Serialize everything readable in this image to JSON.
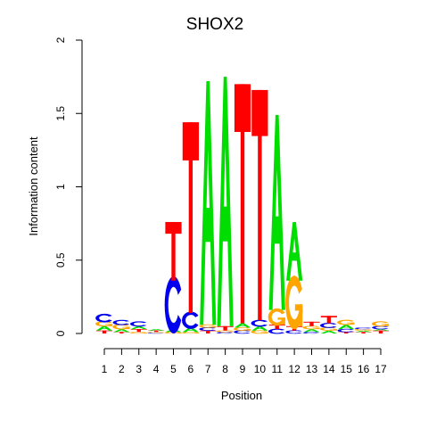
{
  "chart_data": {
    "type": "sequence-logo",
    "title": "SHOX2",
    "xlabel": "Position",
    "ylabel": "Information content",
    "ylim": [
      0,
      2
    ],
    "y_ticks": [
      "0",
      "0.5",
      "1",
      "1.5",
      "2"
    ],
    "positions": [
      "1",
      "2",
      "3",
      "4",
      "5",
      "6",
      "7",
      "8",
      "9",
      "10",
      "11",
      "12",
      "13",
      "14",
      "15",
      "16",
      "17"
    ],
    "colors": {
      "A": "#00dd00",
      "C": "#0000ee",
      "G": "#ffa500",
      "T": "#ff0000"
    },
    "columns": [
      [
        [
          "T",
          0.02
        ],
        [
          "A",
          0.03
        ],
        [
          "G",
          0.03
        ],
        [
          "C",
          0.05
        ]
      ],
      [
        [
          "T",
          0.01
        ],
        [
          "A",
          0.02
        ],
        [
          "G",
          0.03
        ],
        [
          "C",
          0.03
        ]
      ],
      [
        [
          "G",
          0.01
        ],
        [
          "T",
          0.02
        ],
        [
          "A",
          0.02
        ],
        [
          "C",
          0.03
        ]
      ],
      [
        [
          "C",
          0.005
        ],
        [
          "G",
          0.005
        ],
        [
          "T",
          0.01
        ],
        [
          "A",
          0.01
        ]
      ],
      [
        [
          "G",
          0.01
        ],
        [
          "A",
          0.02
        ],
        [
          "C",
          0.33
        ],
        [
          "T",
          0.4
        ]
      ],
      [
        [
          "G",
          0.01
        ],
        [
          "A",
          0.03
        ],
        [
          "C",
          0.1
        ],
        [
          "T",
          1.3
        ]
      ],
      [
        [
          "T",
          0.02
        ],
        [
          "C",
          0.02
        ],
        [
          "G",
          0.02
        ],
        [
          "A",
          1.66
        ]
      ],
      [
        [
          "C",
          0.01
        ],
        [
          "G",
          0.01
        ],
        [
          "T",
          0.03
        ],
        [
          "A",
          1.7
        ]
      ],
      [
        [
          "C",
          0.02
        ],
        [
          "G",
          0.02
        ],
        [
          "A",
          0.03
        ],
        [
          "T",
          1.63
        ]
      ],
      [
        [
          "G",
          0.02
        ],
        [
          "A",
          0.03
        ],
        [
          "C",
          0.04
        ],
        [
          "T",
          1.57
        ]
      ],
      [
        [
          "C",
          0.03
        ],
        [
          "T",
          0.03
        ],
        [
          "G",
          0.1
        ],
        [
          "A",
          1.33
        ]
      ],
      [
        [
          "C",
          0.02
        ],
        [
          "T",
          0.03
        ],
        [
          "G",
          0.31
        ],
        [
          "A",
          0.4
        ]
      ],
      [
        [
          "C",
          0.01
        ],
        [
          "A",
          0.02
        ],
        [
          "G",
          0.02
        ],
        [
          "T",
          0.03
        ]
      ],
      [
        [
          "A",
          0.02
        ],
        [
          "G",
          0.02
        ],
        [
          "C",
          0.03
        ],
        [
          "T",
          0.05
        ]
      ],
      [
        [
          "T",
          0.01
        ],
        [
          "C",
          0.02
        ],
        [
          "A",
          0.03
        ],
        [
          "G",
          0.03
        ]
      ],
      [
        [
          "T",
          0.01
        ],
        [
          "A",
          0.01
        ],
        [
          "G",
          0.01
        ],
        [
          "C",
          0.01
        ]
      ],
      [
        [
          "T",
          0.02
        ],
        [
          "A",
          0.01
        ],
        [
          "C",
          0.02
        ],
        [
          "G",
          0.03
        ]
      ]
    ]
  }
}
